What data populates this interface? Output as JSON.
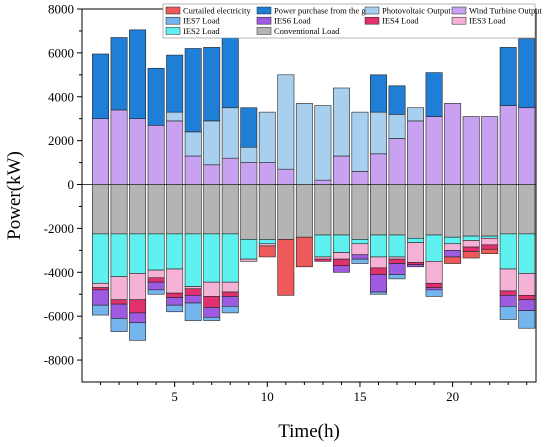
{
  "chart_data": {
    "type": "bar",
    "stacked": true,
    "xlabel": "Time(h)",
    "ylabel": "Power(kW)",
    "ylim": [
      -9000,
      8000
    ],
    "xlim": [
      0,
      24.5
    ],
    "xticks": [
      5,
      10,
      15,
      20
    ],
    "yticks": [
      -8000,
      -6000,
      -4000,
      -2000,
      0,
      2000,
      4000,
      6000,
      8000
    ],
    "grid": false,
    "legend_position": "top-right",
    "x": [
      1,
      2,
      3,
      4,
      5,
      6,
      7,
      8,
      9,
      10,
      11,
      12,
      13,
      14,
      15,
      16,
      17,
      18,
      19,
      20,
      21,
      22,
      23,
      24
    ],
    "positive_series": [
      {
        "name": "Wind Turbine Output",
        "color": "#c8a2f0",
        "values": [
          3000,
          3400,
          3000,
          2700,
          2900,
          1300,
          900,
          1200,
          1000,
          1000,
          700,
          0,
          200,
          1300,
          600,
          1400,
          2100,
          2900,
          3100,
          3700,
          3100,
          3100,
          3600,
          3500
        ]
      },
      {
        "name": "Photovoltaic Output",
        "color": "#a9cfee",
        "values": [
          0,
          0,
          0,
          0,
          400,
          1100,
          2000,
          2300,
          700,
          2300,
          4300,
          3700,
          3400,
          3100,
          2700,
          1900,
          1100,
          600,
          0,
          0,
          0,
          0,
          0,
          0
        ]
      },
      {
        "name": "Power purchase from the grid",
        "color": "#1f7ed6",
        "values": [
          2950,
          3300,
          4050,
          2600,
          2600,
          3800,
          3350,
          3200,
          1800,
          0,
          0,
          0,
          0,
          0,
          0,
          1700,
          1300,
          0,
          2000,
          0,
          0,
          0,
          2650,
          3150
        ]
      }
    ],
    "negative_series": [
      {
        "name": "Conventional Load",
        "color": "#b4b4b4",
        "values": [
          -2250,
          -2250,
          -2250,
          -2250,
          -2250,
          -2250,
          -2250,
          -2250,
          -2500,
          -2500,
          -2500,
          -2400,
          -2300,
          -2300,
          -2500,
          -2300,
          -2300,
          -2450,
          -2300,
          -2400,
          -2350,
          -2350,
          -2250,
          -2250
        ]
      },
      {
        "name": "IES2 Load",
        "color": "#5ff0f0",
        "values": [
          -2250,
          -1950,
          -1800,
          -1650,
          -1600,
          -2400,
          -2200,
          -2200,
          -900,
          -200,
          0,
          0,
          -1000,
          -800,
          -200,
          -1000,
          -1000,
          -200,
          -1200,
          -300,
          -200,
          -100,
          -1600,
          -1800
        ]
      },
      {
        "name": "IES3 Load",
        "color": "#f6b2d6",
        "values": [
          -200,
          -1050,
          -1200,
          -350,
          -1100,
          -100,
          -650,
          -450,
          -100,
          -100,
          0,
          0,
          -100,
          -300,
          -500,
          -500,
          -100,
          -900,
          -1000,
          -300,
          -300,
          -300,
          -1000,
          -1000
        ]
      },
      {
        "name": "IES4 Load",
        "color": "#e0316e",
        "values": [
          -100,
          -200,
          -600,
          -200,
          -200,
          -300,
          -500,
          -200,
          0,
          0,
          0,
          0,
          -100,
          -300,
          0,
          -300,
          -200,
          -100,
          -200,
          0,
          -200,
          -200,
          -200,
          -200
        ]
      },
      {
        "name": "IES6 Load",
        "color": "#9e5ae0",
        "values": [
          -700,
          -650,
          -450,
          -350,
          -350,
          -350,
          -450,
          -450,
          0,
          0,
          0,
          0,
          0,
          -300,
          -200,
          -800,
          -500,
          -100,
          -100,
          -300,
          0,
          0,
          -500,
          -500
        ]
      },
      {
        "name": "IES7 Load",
        "color": "#74b5ee",
        "values": [
          -450,
          -600,
          -800,
          -200,
          -300,
          -800,
          -150,
          -300,
          0,
          0,
          0,
          0,
          0,
          0,
          -200,
          -100,
          -200,
          0,
          -300,
          0,
          0,
          0,
          -600,
          -800
        ]
      },
      {
        "name": "Curtailed electricity",
        "color": "#ee5a5a",
        "values": [
          0,
          0,
          0,
          0,
          0,
          0,
          0,
          0,
          0,
          -500,
          -2550,
          -1350,
          0,
          0,
          0,
          0,
          0,
          0,
          0,
          -300,
          -300,
          -200,
          0,
          0
        ]
      }
    ],
    "legend": [
      [
        "Curtailed electricity",
        "Power purchase from the grid",
        "Photovoltaic Output",
        "Wind Turbine Output"
      ],
      [
        "IES7 Load",
        "IES6 Load",
        "IES4 Load",
        "IES3 Load"
      ],
      [
        "IES2 Load",
        "Conventional Load"
      ]
    ],
    "legend_colors": {
      "Curtailed electricity": "#ee5a5a",
      "Power purchase from the grid": "#1f7ed6",
      "Photovoltaic Output": "#a9cfee",
      "Wind Turbine Output": "#c8a2f0",
      "IES7 Load": "#74b5ee",
      "IES6 Load": "#9e5ae0",
      "IES4 Load": "#e0316e",
      "IES3 Load": "#f6b2d6",
      "IES2 Load": "#5ff0f0",
      "Conventional Load": "#b4b4b4"
    }
  }
}
